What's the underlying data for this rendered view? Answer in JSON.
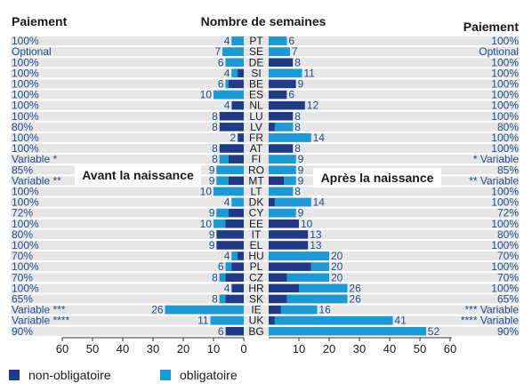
{
  "chart_data": {
    "type": "bar",
    "title": "Nombre de semaines",
    "left_header": "Paiement",
    "right_header": "Paiement",
    "left_panel_label": "Avant la naissance",
    "right_panel_label": "Après la naissance",
    "xlim": [
      0,
      60
    ],
    "x_ticks": [
      "60",
      "50",
      "40",
      "30",
      "20",
      "10",
      "0",
      "10",
      "20",
      "30",
      "40",
      "50",
      "60"
    ],
    "colors": {
      "non_obligatoire": "#1f3b87",
      "obligatoire": "#1a9ad6",
      "label": "#1f4e8c",
      "stripe": "#e6e6e6"
    },
    "legend": [
      {
        "name": "non-obligatoire",
        "color": "#1f3b87"
      },
      {
        "name": "obligatoire",
        "color": "#1a9ad6"
      }
    ],
    "rows": [
      {
        "code": "PT",
        "left_pay": "100%",
        "right_pay": "100%",
        "before_total": 4,
        "before_mandatory": 4,
        "after_total": 6,
        "after_mandatory": 6
      },
      {
        "code": "SE",
        "left_pay": "Optional",
        "right_pay": "Optional",
        "before_total": 7,
        "before_mandatory": 7,
        "after_total": 7,
        "after_mandatory": 7
      },
      {
        "code": "DE",
        "left_pay": "100%",
        "right_pay": "100%",
        "before_total": 6,
        "before_mandatory": 6,
        "after_total": 8,
        "after_mandatory": 0
      },
      {
        "code": "SI",
        "left_pay": "100%",
        "right_pay": "100%",
        "before_total": 4,
        "before_mandatory": 2,
        "after_total": 11,
        "after_mandatory": 11
      },
      {
        "code": "BE",
        "left_pay": "100%",
        "right_pay": "100%",
        "before_total": 6,
        "before_mandatory": 1,
        "after_total": 9,
        "after_mandatory": 0
      },
      {
        "code": "ES",
        "left_pay": "100%",
        "right_pay": "100%",
        "before_total": 10,
        "before_mandatory": 10,
        "after_total": 6,
        "after_mandatory": 0
      },
      {
        "code": "NL",
        "left_pay": "100%",
        "right_pay": "100%",
        "before_total": 4,
        "before_mandatory": 0,
        "after_total": 12,
        "after_mandatory": 0
      },
      {
        "code": "LU",
        "left_pay": "100%",
        "right_pay": "100%",
        "before_total": 8,
        "before_mandatory": 0,
        "after_total": 8,
        "after_mandatory": 0
      },
      {
        "code": "LV",
        "left_pay": "80%",
        "right_pay": "80%",
        "before_total": 8,
        "before_mandatory": 0,
        "after_total": 8,
        "after_mandatory": 6
      },
      {
        "code": "FR",
        "left_pay": "100%",
        "right_pay": "100%",
        "before_total": 2,
        "before_mandatory": 0,
        "after_total": 14,
        "after_mandatory": 14
      },
      {
        "code": "AT",
        "left_pay": "100%",
        "right_pay": "100%",
        "before_total": 8,
        "before_mandatory": 0,
        "after_total": 8,
        "after_mandatory": 0
      },
      {
        "code": "FI",
        "left_pay": "Variable *",
        "right_pay": "* Variable",
        "before_total": 8,
        "before_mandatory": 3,
        "after_total": 9,
        "after_mandatory": 9
      },
      {
        "code": "RO",
        "left_pay": "85%",
        "right_pay": "85%",
        "before_total": 9,
        "before_mandatory": 9,
        "after_total": 9,
        "after_mandatory": 9
      },
      {
        "code": "MT",
        "left_pay": "Variable **",
        "right_pay": "** Variable",
        "before_total": 9,
        "before_mandatory": 4,
        "after_total": 9,
        "after_mandatory": 4
      },
      {
        "code": "LT",
        "left_pay": "100%",
        "right_pay": "100%",
        "before_total": 10,
        "before_mandatory": 10,
        "after_total": 8,
        "after_mandatory": 8
      },
      {
        "code": "DK",
        "left_pay": "100%",
        "right_pay": "100%",
        "before_total": 4,
        "before_mandatory": 4,
        "after_total": 14,
        "after_mandatory": 12
      },
      {
        "code": "CY",
        "left_pay": "72%",
        "right_pay": "72%",
        "before_total": 9,
        "before_mandatory": 4,
        "after_total": 9,
        "after_mandatory": 9
      },
      {
        "code": "EE",
        "left_pay": "100%",
        "right_pay": "100%",
        "before_total": 10,
        "before_mandatory": 4,
        "after_total": 10,
        "after_mandatory": 0
      },
      {
        "code": "IT",
        "left_pay": "80%",
        "right_pay": "80%",
        "before_total": 9,
        "before_mandatory": 0,
        "after_total": 13,
        "after_mandatory": 0
      },
      {
        "code": "EL",
        "left_pay": "100%",
        "right_pay": "100%",
        "before_total": 9,
        "before_mandatory": 0,
        "after_total": 13,
        "after_mandatory": 0
      },
      {
        "code": "HU",
        "left_pay": "70%",
        "right_pay": "70%",
        "before_total": 4,
        "before_mandatory": 2,
        "after_total": 20,
        "after_mandatory": 20
      },
      {
        "code": "PL",
        "left_pay": "100%",
        "right_pay": "100%",
        "before_total": 6,
        "before_mandatory": 2,
        "after_total": 20,
        "after_mandatory": 6
      },
      {
        "code": "CZ",
        "left_pay": "70%",
        "right_pay": "70%",
        "before_total": 8,
        "before_mandatory": 2,
        "after_total": 20,
        "after_mandatory": 14
      },
      {
        "code": "HR",
        "left_pay": "100%",
        "right_pay": "100%",
        "before_total": 4,
        "before_mandatory": 0,
        "after_total": 26,
        "after_mandatory": 16
      },
      {
        "code": "SK",
        "left_pay": "65%",
        "right_pay": "65%",
        "before_total": 8,
        "before_mandatory": 2,
        "after_total": 26,
        "after_mandatory": 20
      },
      {
        "code": "IE",
        "left_pay": "Variable ***",
        "right_pay": "*** Variable",
        "before_total": 26,
        "before_mandatory": 26,
        "after_total": 16,
        "after_mandatory": 12
      },
      {
        "code": "UK",
        "left_pay": "Variable ****",
        "right_pay": "**** Variable",
        "before_total": 11,
        "before_mandatory": 11,
        "after_total": 41,
        "after_mandatory": 39
      },
      {
        "code": "BG",
        "left_pay": "90%",
        "right_pay": "90%",
        "before_total": 6,
        "before_mandatory": 0,
        "after_total": 52,
        "after_mandatory": 52
      }
    ]
  }
}
